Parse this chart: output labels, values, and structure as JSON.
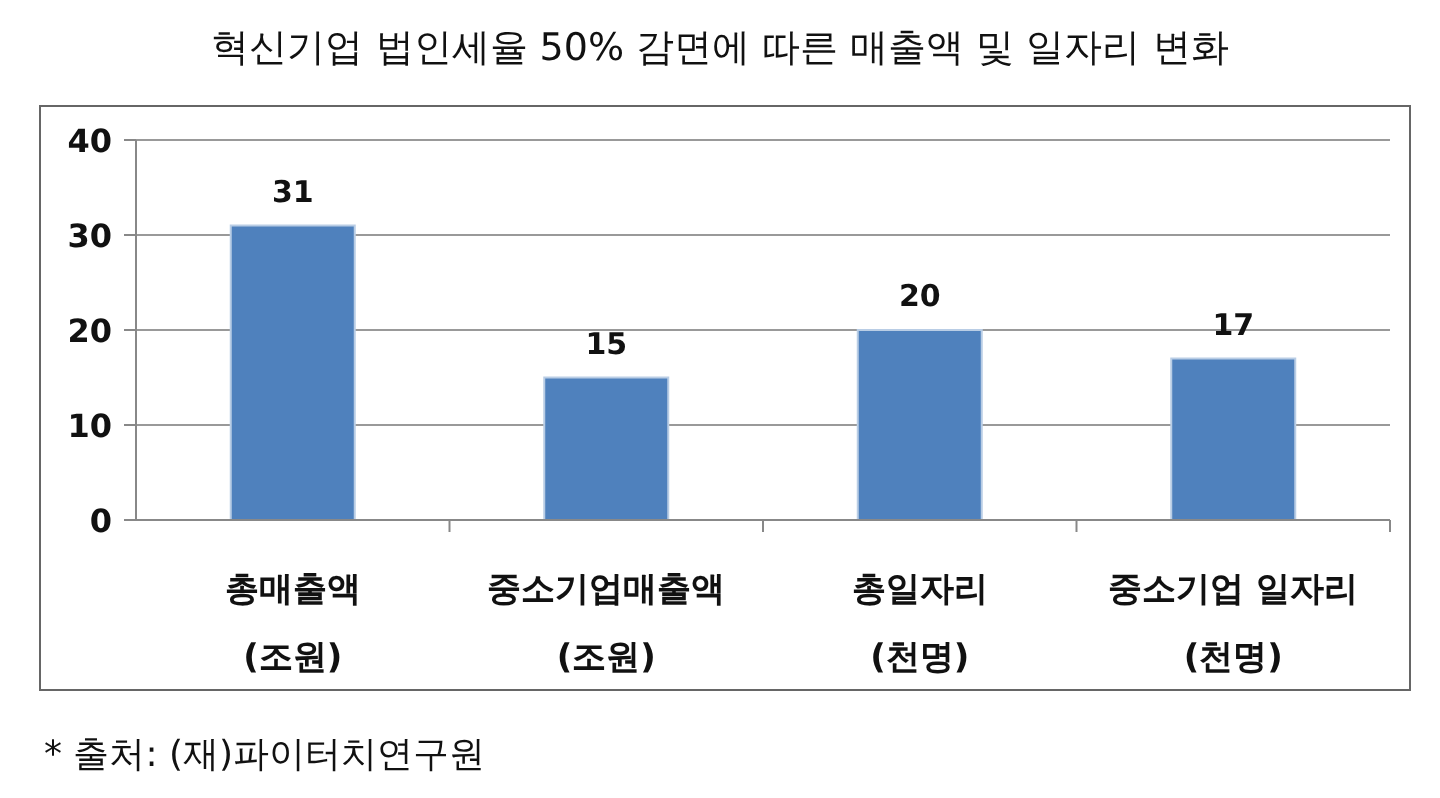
{
  "chart_data": {
    "type": "bar",
    "title": "혁신기업 법인세율 50% 감면에 따른 매출액 및 일자리 변화",
    "categories": [
      "총매출액 (조원)",
      "중소기업매출액 (조원)",
      "총일자리 (천명)",
      "중소기업 일자리 (천명)"
    ],
    "values": [
      31,
      15,
      20,
      17
    ],
    "color": "#4f81bd",
    "ylim": [
      0,
      40
    ],
    "yticks": [
      0,
      10,
      20,
      30,
      40
    ],
    "grid": "y",
    "data_labels": true,
    "annotations": [
      "*  출처: (재)파이터치연구원"
    ]
  }
}
